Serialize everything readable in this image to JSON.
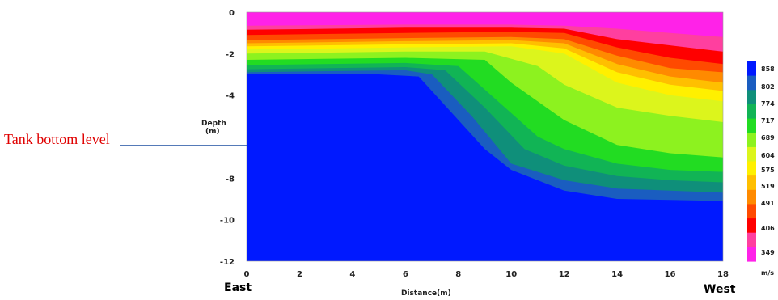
{
  "chart_data": {
    "type": "heatmap",
    "title": "",
    "xlabel": "Distance(m)",
    "ylabel": "Depth\n(m)",
    "x_ticks": [
      0,
      2,
      4,
      6,
      8,
      10,
      12,
      14,
      16,
      18
    ],
    "y_ticks": [
      0,
      -2,
      -4,
      -8,
      -10,
      -12
    ],
    "xlim": [
      0,
      18
    ],
    "ylim": [
      -12,
      0
    ],
    "direction_left": "East",
    "direction_right": "West",
    "annotation": {
      "text": "Tank bottom level",
      "depth": -5.5
    },
    "legend": {
      "unit": "m/s",
      "levels": [
        858,
        802,
        774,
        717,
        689,
        604,
        575,
        519,
        491,
        406,
        349
      ],
      "colors": [
        "#0019ff",
        "#1a5dc0",
        "#0f8f7a",
        "#11b455",
        "#22dc22",
        "#8df21f",
        "#dcf51c",
        "#fff000",
        "#ffbf00",
        "#ff8a00",
        "#ff4a00",
        "#ff0000",
        "#ff3f9f",
        "#ff22e8"
      ]
    },
    "layers": [
      {
        "color": "#ff22e8",
        "depth": [
          [
            0,
            0
          ],
          [
            18,
            0
          ]
        ]
      },
      {
        "color": "#ff3f9f",
        "depth": [
          [
            0,
            -0.65
          ],
          [
            6,
            -0.6
          ],
          [
            10,
            -0.6
          ],
          [
            12,
            -0.65
          ],
          [
            14,
            -0.8
          ],
          [
            16,
            -1.0
          ],
          [
            18,
            -1.2
          ]
        ]
      },
      {
        "color": "#ff0000",
        "depth": [
          [
            0,
            -0.85
          ],
          [
            6,
            -0.75
          ],
          [
            10,
            -0.75
          ],
          [
            12,
            -0.8
          ],
          [
            14,
            -1.3
          ],
          [
            16,
            -1.6
          ],
          [
            18,
            -1.9
          ]
        ]
      },
      {
        "color": "#ff4a00",
        "depth": [
          [
            0,
            -1.1
          ],
          [
            6,
            -1.0
          ],
          [
            10,
            -0.95
          ],
          [
            12,
            -1.0
          ],
          [
            14,
            -1.7
          ],
          [
            16,
            -2.2
          ],
          [
            18,
            -2.5
          ]
        ]
      },
      {
        "color": "#ff8a00",
        "depth": [
          [
            0,
            -1.35
          ],
          [
            6,
            -1.25
          ],
          [
            10,
            -1.2
          ],
          [
            12,
            -1.3
          ],
          [
            14,
            -2.1
          ],
          [
            16,
            -2.7
          ],
          [
            18,
            -2.9
          ]
        ]
      },
      {
        "color": "#ffbf00",
        "depth": [
          [
            0,
            -1.5
          ],
          [
            6,
            -1.4
          ],
          [
            10,
            -1.35
          ],
          [
            12,
            -1.5
          ],
          [
            14,
            -2.5
          ],
          [
            16,
            -3.1
          ],
          [
            18,
            -3.4
          ]
        ]
      },
      {
        "color": "#fff000",
        "depth": [
          [
            0,
            -1.65
          ],
          [
            6,
            -1.55
          ],
          [
            10,
            -1.5
          ],
          [
            12,
            -1.75
          ],
          [
            14,
            -2.9
          ],
          [
            16,
            -3.5
          ],
          [
            18,
            -3.8
          ]
        ]
      },
      {
        "color": "#dcf51c",
        "depth": [
          [
            0,
            -1.8
          ],
          [
            6,
            -1.7
          ],
          [
            10,
            -1.65
          ],
          [
            12,
            -2.0
          ],
          [
            14,
            -3.4
          ],
          [
            16,
            -4.0
          ],
          [
            18,
            -4.3
          ]
        ]
      },
      {
        "color": "#8df21f",
        "depth": [
          [
            0,
            -2.0
          ],
          [
            6,
            -1.9
          ],
          [
            9,
            -1.9
          ],
          [
            11,
            -2.6
          ],
          [
            12,
            -3.5
          ],
          [
            14,
            -4.6
          ],
          [
            16,
            -5.0
          ],
          [
            18,
            -5.3
          ]
        ]
      },
      {
        "color": "#22dc22",
        "depth": [
          [
            0,
            -2.3
          ],
          [
            6,
            -2.2
          ],
          [
            9,
            -2.3
          ],
          [
            10,
            -3.4
          ],
          [
            12,
            -5.2
          ],
          [
            14,
            -6.4
          ],
          [
            16,
            -6.8
          ],
          [
            18,
            -7.0
          ]
        ]
      },
      {
        "color": "#11b455",
        "depth": [
          [
            0,
            -2.55
          ],
          [
            6,
            -2.45
          ],
          [
            8,
            -2.6
          ],
          [
            9.5,
            -4.3
          ],
          [
            11,
            -6.0
          ],
          [
            12,
            -6.6
          ],
          [
            14,
            -7.3
          ],
          [
            16,
            -7.6
          ],
          [
            18,
            -7.7
          ]
        ]
      },
      {
        "color": "#0f8f7a",
        "depth": [
          [
            0,
            -2.75
          ],
          [
            6,
            -2.65
          ],
          [
            7.5,
            -2.8
          ],
          [
            9,
            -4.6
          ],
          [
            10.5,
            -6.6
          ],
          [
            12,
            -7.4
          ],
          [
            14,
            -7.9
          ],
          [
            16,
            -8.1
          ],
          [
            18,
            -8.2
          ]
        ]
      },
      {
        "color": "#1a5dc0",
        "depth": [
          [
            0,
            -2.9
          ],
          [
            6,
            -2.8
          ],
          [
            7,
            -3.0
          ],
          [
            8.5,
            -5.0
          ],
          [
            10,
            -7.3
          ],
          [
            12,
            -8.1
          ],
          [
            14,
            -8.5
          ],
          [
            16,
            -8.6
          ],
          [
            18,
            -8.7
          ]
        ]
      },
      {
        "color": "#0019ff",
        "depth": [
          [
            0,
            -3.0
          ],
          [
            5,
            -3.0
          ],
          [
            6.5,
            -3.1
          ],
          [
            8,
            -5.2
          ],
          [
            9,
            -6.6
          ],
          [
            10,
            -7.6
          ],
          [
            12,
            -8.6
          ],
          [
            14,
            -9.0
          ],
          [
            16,
            -9.05
          ],
          [
            18,
            -9.1
          ]
        ]
      }
    ]
  }
}
